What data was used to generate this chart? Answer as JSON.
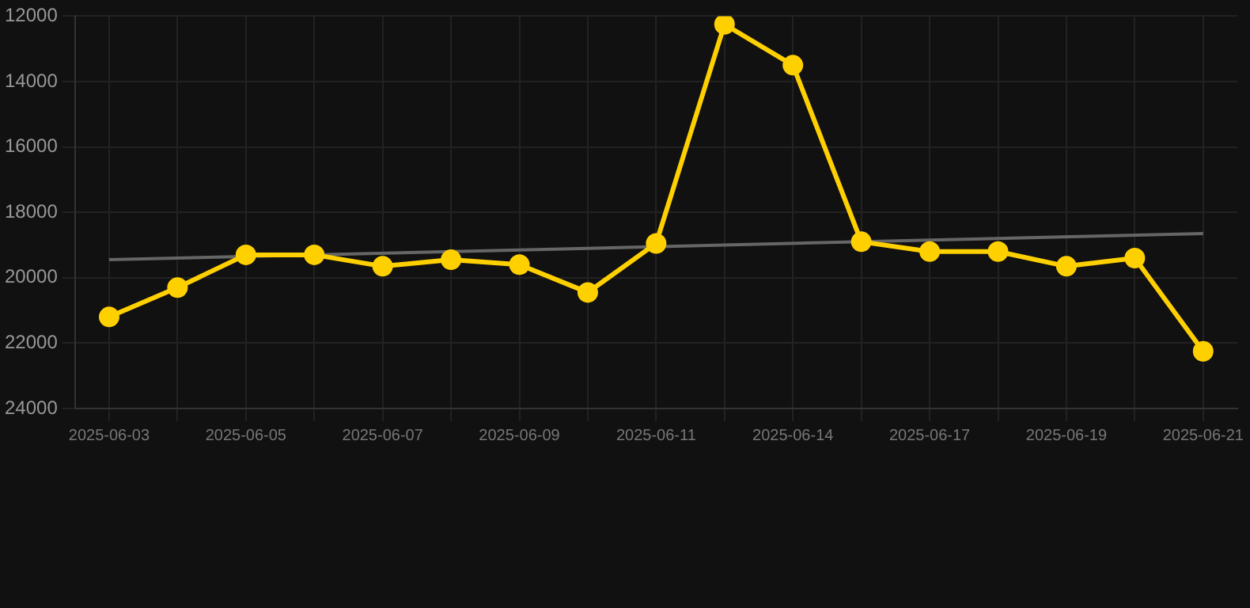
{
  "chart_data": {
    "type": "line",
    "categories": [
      "2025-06-03",
      null,
      "2025-06-05",
      null,
      "2025-06-07",
      null,
      "2025-06-09",
      null,
      "2025-06-11",
      null,
      "2025-06-14",
      null,
      "2025-06-17",
      null,
      "2025-06-19",
      null,
      "2025-06-21"
    ],
    "series": [
      {
        "color": "#ffd000",
        "marker": "circle",
        "values": [
          21200,
          20300,
          19300,
          19300,
          19650,
          19450,
          19600,
          20450,
          18950,
          12250,
          13500,
          18900,
          19200,
          19200,
          19650,
          19400,
          22250
        ]
      },
      {
        "type": "line",
        "color": "#666666",
        "marker": "none",
        "values": [
          19450,
          null,
          null,
          null,
          null,
          null,
          null,
          null,
          null,
          null,
          null,
          null,
          null,
          null,
          null,
          null,
          18650
        ]
      }
    ],
    "ylim": [
      24000,
      12000
    ],
    "yticks": [
      12000,
      14000,
      16000,
      18000,
      20000,
      22000,
      24000
    ],
    "grid": true,
    "legend": false,
    "line_style": "solid"
  }
}
